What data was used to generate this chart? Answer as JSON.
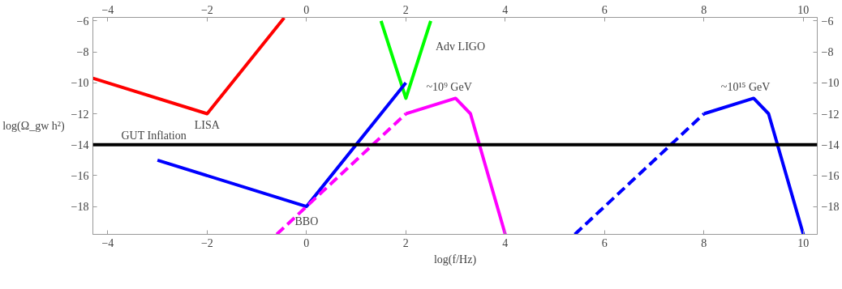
{
  "chart_data": {
    "type": "line",
    "xlabel": "log(f/Hz)",
    "ylabel": "log(Ω_gw h²)",
    "xlim": [
      -4.3,
      10.28
    ],
    "ylim": [
      -19.8,
      -5.77
    ],
    "x2lim": [
      -4.3,
      10.28
    ],
    "y2lim": [
      -19.8,
      -5.77
    ],
    "xticks": [
      -4,
      -2,
      0,
      2,
      4,
      6,
      8,
      10
    ],
    "x2ticks": [
      -4,
      -2,
      0,
      2,
      4,
      6,
      8,
      10
    ],
    "yticks": [
      -6,
      -8,
      -10,
      -12,
      -14,
      -16,
      -18
    ],
    "y2ticks": [
      -6,
      -8,
      -10,
      -12,
      -14,
      -16,
      -18
    ],
    "grid": false,
    "marker": "none",
    "series": [
      {
        "name": "LISA",
        "color": "#ff0000",
        "line_style": "solid",
        "x": [
          -4.3,
          -2,
          -0.45
        ],
        "values": [
          -9.7,
          -12,
          -5.8
        ]
      },
      {
        "name": "Adv LIGO",
        "color": "#00ff00",
        "line_style": "solid",
        "x": [
          1.5,
          2,
          2.5
        ],
        "values": [
          -6,
          -11,
          -6
        ]
      },
      {
        "name": "BBO",
        "color": "#0000ff",
        "line_style": "solid",
        "x": [
          -3,
          0,
          2
        ],
        "values": [
          -15,
          -18,
          -10
        ]
      },
      {
        "color": "#ff00ff",
        "line_style": "dashed",
        "x": [
          -0.6,
          2
        ],
        "values": [
          -19.8,
          -12
        ]
      },
      {
        "name": "~10⁹ GeV",
        "color": "#ff00ff",
        "line_style": "solid",
        "x": [
          2,
          3,
          3.3,
          4
        ],
        "values": [
          -12,
          -11,
          -12,
          -19.8
        ]
      },
      {
        "color": "#0000ff",
        "line_style": "dashed",
        "x": [
          5.4,
          8
        ],
        "values": [
          -19.8,
          -12
        ]
      },
      {
        "name": "~10¹⁵ GeV",
        "color": "#0000ff",
        "line_style": "solid",
        "x": [
          8,
          9,
          9.3,
          10
        ],
        "values": [
          -12,
          -11,
          -12,
          -19.8
        ]
      }
    ],
    "ref_lines": [
      {
        "axis": "y",
        "value": -14,
        "label": "GUT Inflation",
        "color": "#000000"
      }
    ]
  }
}
